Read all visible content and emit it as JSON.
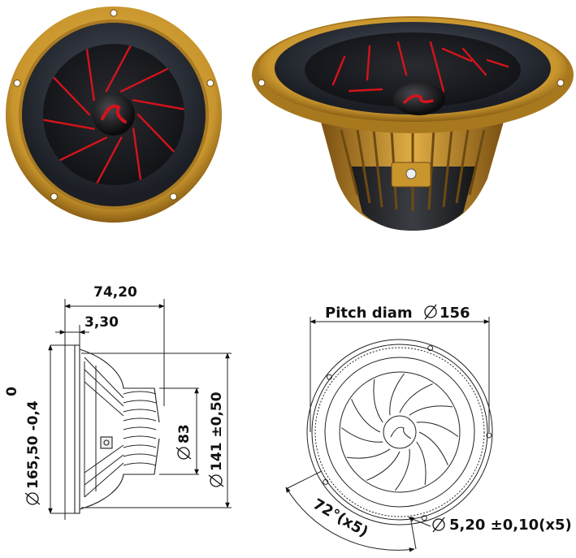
{
  "colors": {
    "basket_gold": "#c9962e",
    "basket_gold_dark": "#8a5f14",
    "surround": "#2b2f36",
    "cone": "#1e1f23",
    "vane_red": "#d4141a",
    "drawing_line": "#222222"
  },
  "icons": [
    "speaker-front-photo",
    "speaker-side-photo",
    "red-logo-dustcap"
  ],
  "dimensions": {
    "overall_depth": "74,20",
    "flange_thickness": "3,30",
    "outer_diameter_tol_top": "0",
    "outer_diameter": "165,50 -0,4",
    "magnet_diameter": "83",
    "cutout_diameter": "141 ±0,50",
    "pitch_diameter": "Pitch diam",
    "pitch_diameter_value": "156",
    "hole_angle": "72°(x5)",
    "hole_size": "5,20 ±0,10(x5)"
  }
}
